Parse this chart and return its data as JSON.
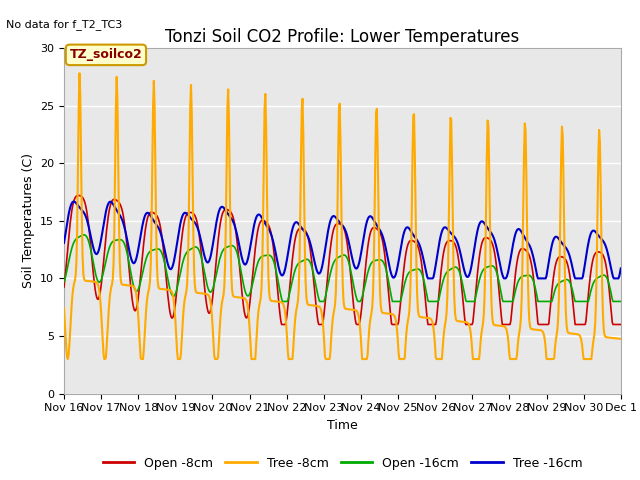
{
  "title": "Tonzi Soil CO2 Profile: Lower Temperatures",
  "subtitle": "No data for f_T2_TC3",
  "xlabel": "Time",
  "ylabel": "Soil Temperatures (C)",
  "ylim": [
    0,
    30
  ],
  "x_tick_labels": [
    "Nov 16",
    "Nov 17",
    "Nov 18",
    "Nov 19",
    "Nov 20",
    "Nov 21",
    "Nov 22",
    "Nov 23",
    "Nov 24",
    "Nov 25",
    "Nov 26",
    "Nov 27",
    "Nov 28",
    "Nov 29",
    "Nov 30",
    "Dec 1"
  ],
  "legend_labels": [
    "Open -8cm",
    "Tree -8cm",
    "Open -16cm",
    "Tree -16cm"
  ],
  "legend_colors": [
    "#cc0000",
    "#ffaa00",
    "#00aa00",
    "#0000cc"
  ],
  "background_color": "#e8e8e8",
  "annotation_text": "TZ_soilco2",
  "annotation_color": "#880000",
  "annotation_bg": "#ffffcc",
  "annotation_border": "#cc9900",
  "title_fontsize": 12,
  "axis_fontsize": 9,
  "tick_fontsize": 8
}
